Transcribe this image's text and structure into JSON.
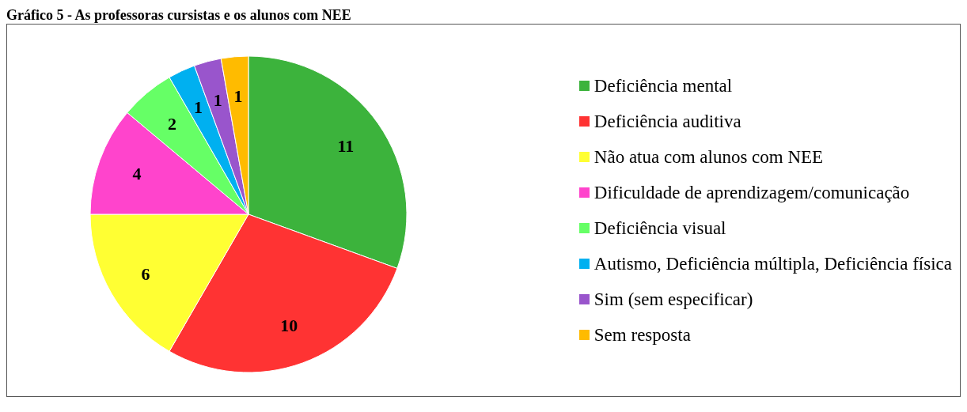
{
  "chart_data": {
    "type": "pie",
    "title": "Gráfico 5 - As professoras cursistas e os alunos com NEE",
    "categories": [
      "Deficiência mental",
      "Deficiência auditiva",
      "Não atua com alunos com NEE",
      "Dificuldade de aprendizagem/comunicação",
      "Deficiência visual",
      "Autismo, Deficiência múltipla, Deficiência física",
      "Sim (sem especificar)",
      "Sem resposta"
    ],
    "values": [
      11,
      10,
      6,
      4,
      2,
      1,
      1,
      1
    ],
    "colors": [
      "#3cb33c",
      "#ff3333",
      "#ffff33",
      "#ff44cc",
      "#66ff66",
      "#00b0f0",
      "#9955cc",
      "#ffbb00"
    ],
    "data_labels": true,
    "legend": "right"
  }
}
